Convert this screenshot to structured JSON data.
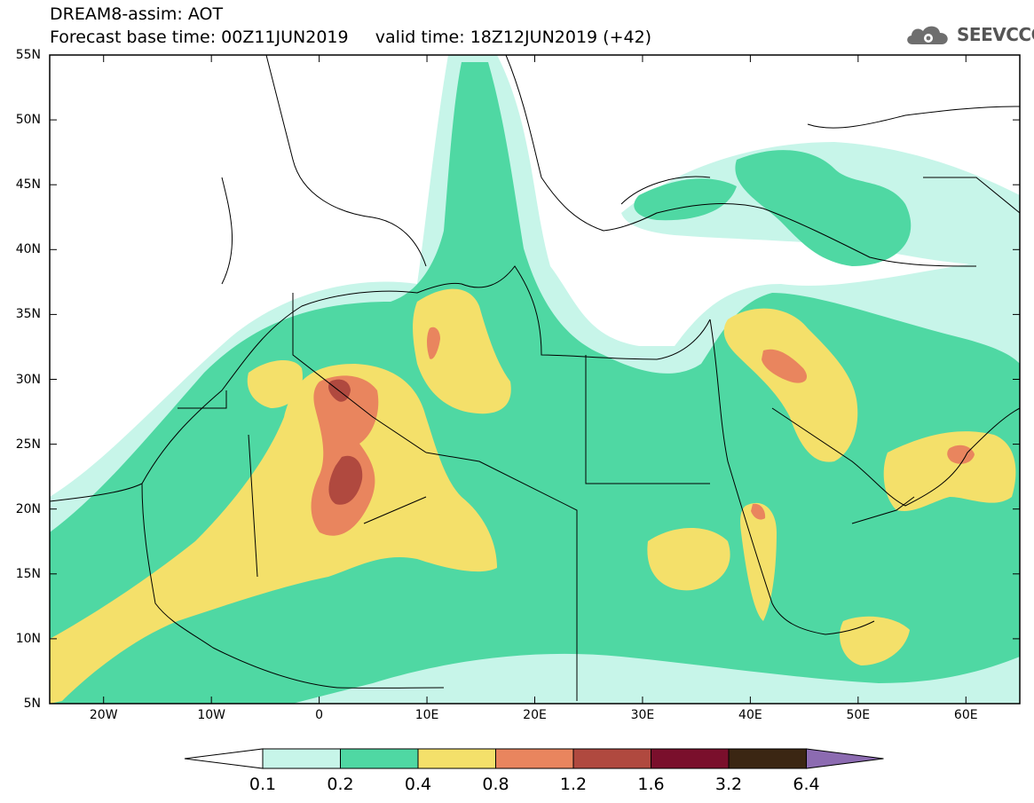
{
  "title_line1": "DREAM8-assim: AOT",
  "title_line2": "Forecast base time: 00Z11JUN2019     valid time: 18Z12JUN2019 (+42)",
  "logo": {
    "icon": "cloud-gear-icon",
    "text": "SEEVCCC"
  },
  "lat_ticks": [
    "55N",
    "50N",
    "45N",
    "40N",
    "35N",
    "30N",
    "25N",
    "20N",
    "15N",
    "10N",
    "5N"
  ],
  "lon_ticks": [
    "20W",
    "10W",
    "0",
    "10E",
    "20E",
    "30E",
    "40E",
    "50E",
    "60E"
  ],
  "colorbar": {
    "labels": [
      "0.1",
      "0.2",
      "0.4",
      "0.8",
      "1.2",
      "1.6",
      "3.2",
      "6.4"
    ],
    "colors": [
      "#c7f5e9",
      "#4fd8a3",
      "#f4e06a",
      "#e9855e",
      "#b0493f",
      "#7a0f2c",
      "#3b2613",
      "#8c6bb1"
    ]
  },
  "field_colors": {
    "lt": "#c7f5e9",
    "g": "#4fd8a3",
    "y": "#f4e06a",
    "o": "#e9855e",
    "r": "#b0493f"
  }
}
